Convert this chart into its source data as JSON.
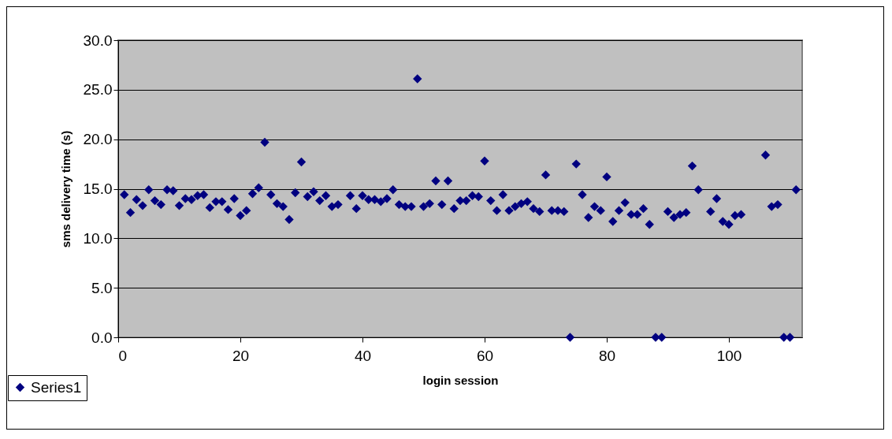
{
  "chart_data": {
    "type": "scatter",
    "xlabel": "login session",
    "ylabel": "sms delivery time (s)",
    "x": [
      1,
      2,
      3,
      4,
      5,
      6,
      7,
      8,
      9,
      10,
      11,
      12,
      13,
      14,
      15,
      16,
      17,
      18,
      19,
      20,
      21,
      22,
      23,
      24,
      25,
      26,
      27,
      28,
      29,
      30,
      31,
      32,
      33,
      34,
      35,
      36,
      38,
      39,
      40,
      41,
      42,
      43,
      44,
      45,
      46,
      47,
      48,
      49,
      50,
      51,
      52,
      53,
      54,
      55,
      56,
      57,
      58,
      59,
      60,
      61,
      62,
      63,
      64,
      65,
      66,
      67,
      68,
      69,
      70,
      71,
      72,
      73,
      74,
      75,
      76,
      77,
      78,
      79,
      80,
      81,
      82,
      83,
      84,
      85,
      86,
      87,
      88,
      89,
      90,
      91,
      92,
      93,
      94,
      95,
      97,
      98,
      99,
      100,
      101,
      102,
      106,
      107,
      108,
      109,
      110,
      111
    ],
    "series": [
      {
        "name": "Series1",
        "color": "#000080",
        "values": [
          14.4,
          12.6,
          13.9,
          13.3,
          14.9,
          13.8,
          13.4,
          14.9,
          14.8,
          13.3,
          14.0,
          13.9,
          14.3,
          14.4,
          13.1,
          13.7,
          13.7,
          12.9,
          14.0,
          12.3,
          12.8,
          14.5,
          15.1,
          19.7,
          14.4,
          13.5,
          13.2,
          11.9,
          14.6,
          17.7,
          14.2,
          14.7,
          13.8,
          14.3,
          13.2,
          13.4,
          14.3,
          13.0,
          14.3,
          13.9,
          13.9,
          13.7,
          14.0,
          14.9,
          13.4,
          13.2,
          13.2,
          26.1,
          13.2,
          13.5,
          15.8,
          13.4,
          15.8,
          13.0,
          13.8,
          13.8,
          14.3,
          14.2,
          17.8,
          13.8,
          12.8,
          14.4,
          12.8,
          13.2,
          13.5,
          13.7,
          13.0,
          12.7,
          16.4,
          12.8,
          12.8,
          12.7,
          0,
          17.5,
          14.4,
          12.1,
          13.2,
          12.8,
          16.2,
          11.7,
          12.8,
          13.6,
          12.4,
          12.4,
          13.0,
          11.4,
          0,
          0,
          12.7,
          12.1,
          12.4,
          12.6,
          17.3,
          14.9,
          12.7,
          14.0,
          11.7,
          11.4,
          12.3,
          12.4,
          18.4,
          13.2,
          13.4,
          0,
          0,
          14.9
        ]
      }
    ],
    "xlim": [
      0,
      112
    ],
    "xticks": [
      0,
      20,
      40,
      60,
      80,
      100
    ],
    "ylim": [
      0,
      30
    ],
    "yticks": [
      {
        "value": 0,
        "label": "0.0"
      },
      {
        "value": 5,
        "label": "5.0"
      },
      {
        "value": 10,
        "label": "10.0"
      },
      {
        "value": 15,
        "label": "15.0"
      },
      {
        "value": 20,
        "label": "20.0"
      },
      {
        "value": 25,
        "label": "25.0"
      },
      {
        "value": 30,
        "label": "30.0"
      }
    ],
    "grid": "y",
    "marker": "diamond",
    "legend": "bottom left"
  }
}
